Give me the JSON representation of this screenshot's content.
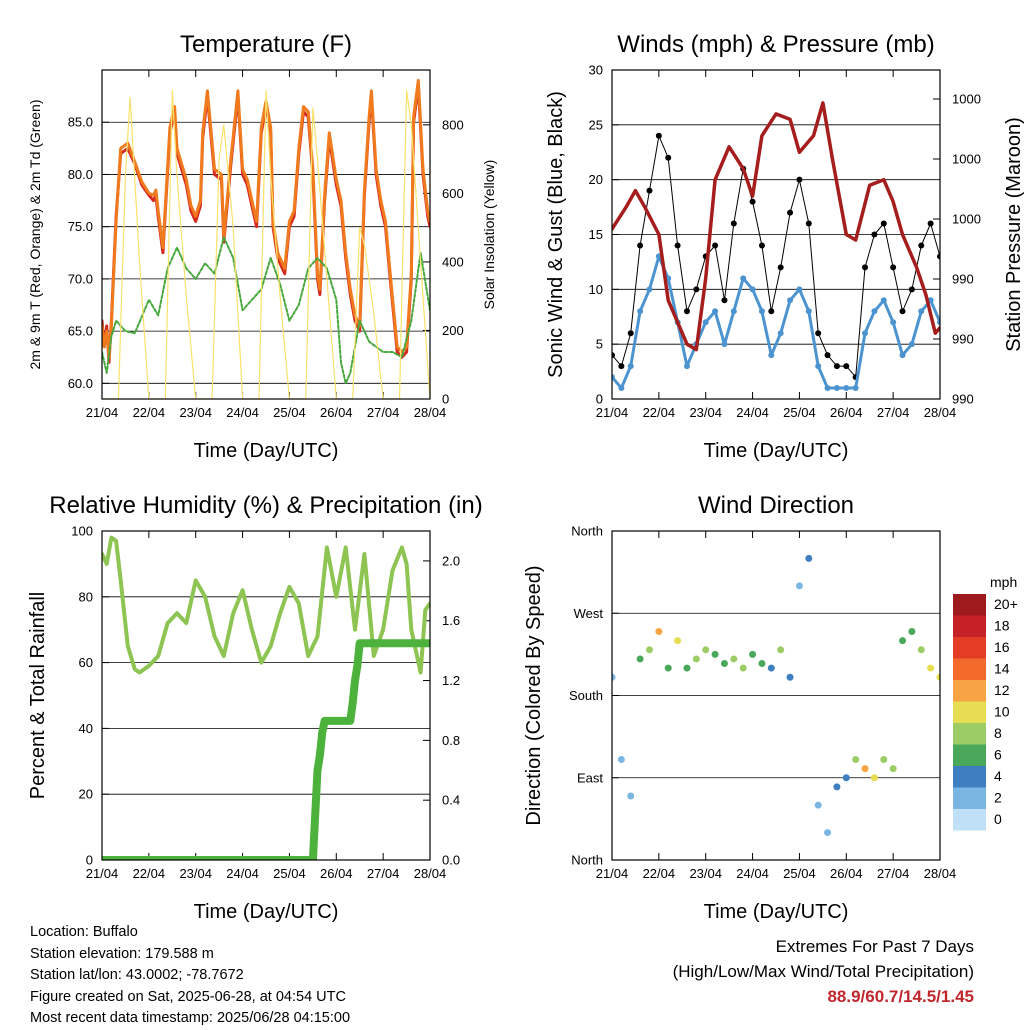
{
  "colors": {
    "t2m": "#d42a20",
    "t9m": "#f07b1e",
    "td": "#48a83e",
    "solar": "#f8e26a",
    "gust": "#000000",
    "wind": "#4c94d0",
    "pressure": "#a51d1d",
    "rh": "#8dc452",
    "precip": "#4cb23c",
    "extremes": "#c0272d"
  },
  "chart_data": [
    {
      "type": "line",
      "title": "Temperature (F)",
      "xlabel": "Time (Day/UTC)",
      "ylabel": "2m & 9m T (Red, Orange) & 2m Td (Green)",
      "y2label": "Solar Insolation (Yellow)",
      "x_ticks": [
        "21/04",
        "22/04",
        "23/04",
        "24/04",
        "25/04",
        "26/04",
        "27/04",
        "28/04"
      ],
      "y_ticks": [
        "60.0",
        "65.0",
        "70.0",
        "75.0",
        "80.0",
        "85.0"
      ],
      "ylim": [
        58.5,
        90
      ],
      "y2_ticks": [
        "0",
        "200",
        "400",
        "600",
        "800"
      ],
      "y2lim": [
        0,
        960
      ],
      "grid": true,
      "series": [
        {
          "key": "t2m",
          "x": [
            0,
            0.05,
            0.1,
            0.15,
            0.2,
            0.3,
            0.4,
            0.55,
            0.7,
            0.85,
            1.0,
            1.1,
            1.15,
            1.2,
            1.3,
            1.45,
            1.55,
            1.6,
            1.8,
            1.9,
            2.0,
            2.1,
            2.15,
            2.25,
            2.4,
            2.55,
            2.6,
            2.75,
            2.9,
            3.0,
            3.1,
            3.2,
            3.3,
            3.4,
            3.5,
            3.6,
            3.65,
            3.75,
            3.9,
            4.0,
            4.1,
            4.2,
            4.3,
            4.4,
            4.5,
            4.6,
            4.65,
            4.75,
            4.85,
            5.0,
            5.1,
            5.2,
            5.3,
            5.4,
            5.5,
            5.6,
            5.7,
            5.75,
            5.85,
            5.95,
            6.05,
            6.15,
            6.3,
            6.4,
            6.5,
            6.6,
            6.65,
            6.75,
            6.85,
            6.95,
            7.0
          ],
          "y": [
            66,
            63.5,
            65.5,
            62,
            66,
            76,
            82,
            82.5,
            81,
            79,
            78,
            77.5,
            78,
            76,
            72.5,
            84,
            86,
            82,
            79,
            76.5,
            75.5,
            77,
            83.5,
            87.5,
            80,
            79.5,
            73.5,
            81,
            87.5,
            80,
            79,
            77,
            75,
            84,
            86.5,
            84,
            75,
            72,
            70.5,
            75,
            76,
            82,
            86,
            85.5,
            80,
            70,
            68.5,
            77.5,
            83.5,
            79,
            77,
            72,
            68.5,
            66,
            65,
            78,
            85,
            87.5,
            80,
            77,
            75,
            70,
            63,
            62.5,
            63,
            70,
            85,
            88.5,
            80,
            76,
            75
          ]
        },
        {
          "key": "t9m",
          "x": [
            0,
            0.05,
            0.1,
            0.15,
            0.2,
            0.3,
            0.4,
            0.55,
            0.7,
            0.85,
            1.0,
            1.1,
            1.15,
            1.2,
            1.3,
            1.45,
            1.55,
            1.6,
            1.8,
            1.9,
            2.0,
            2.1,
            2.15,
            2.25,
            2.4,
            2.55,
            2.6,
            2.75,
            2.9,
            3.0,
            3.1,
            3.2,
            3.3,
            3.4,
            3.5,
            3.6,
            3.65,
            3.75,
            3.9,
            4.0,
            4.1,
            4.2,
            4.3,
            4.4,
            4.5,
            4.6,
            4.65,
            4.75,
            4.85,
            5.0,
            5.1,
            5.2,
            5.3,
            5.4,
            5.5,
            5.6,
            5.7,
            5.75,
            5.85,
            5.95,
            6.05,
            6.15,
            6.3,
            6.4,
            6.5,
            6.6,
            6.65,
            6.75,
            6.85,
            6.95,
            7.0
          ],
          "y": [
            65.5,
            63.5,
            65,
            62.5,
            65.5,
            75.5,
            82.5,
            83,
            81.2,
            79.3,
            78.2,
            78,
            78.5,
            76.5,
            73,
            84.5,
            86.5,
            82.5,
            79.5,
            77,
            76,
            77.5,
            84,
            88,
            80.5,
            80,
            74,
            81.5,
            88,
            80.5,
            79.5,
            77.5,
            75.5,
            84.5,
            87,
            84.5,
            75.5,
            72.5,
            71,
            75.5,
            76.5,
            82.5,
            86.5,
            86,
            80.5,
            70.5,
            69,
            78,
            84,
            79.5,
            77.5,
            72.5,
            69,
            66.5,
            65.5,
            78.5,
            85.5,
            88,
            80.5,
            77.5,
            75.5,
            70.5,
            63.5,
            63,
            63.5,
            70.5,
            85.5,
            89,
            80.5,
            76.5,
            75.5
          ]
        },
        {
          "key": "td",
          "x": [
            0,
            0.1,
            0.2,
            0.3,
            0.5,
            0.7,
            1.0,
            1.2,
            1.4,
            1.6,
            1.8,
            2.0,
            2.2,
            2.4,
            2.6,
            2.8,
            3.0,
            3.2,
            3.4,
            3.6,
            3.8,
            4.0,
            4.2,
            4.4,
            4.6,
            4.8,
            5.0,
            5.1,
            5.2,
            5.3,
            5.5,
            5.7,
            6.0,
            6.2,
            6.4,
            6.6,
            6.8,
            7.0
          ],
          "y": [
            63,
            61,
            64.5,
            66,
            65,
            64.8,
            68,
            66.5,
            71,
            73,
            71,
            70,
            71.5,
            70.5,
            74,
            72,
            67,
            68,
            69,
            72,
            69.5,
            66,
            67.5,
            71,
            72,
            71,
            68,
            62,
            60,
            61,
            66,
            64,
            63,
            63,
            62.5,
            66,
            72.5,
            67
          ]
        },
        {
          "key": "solar",
          "axis": "y2",
          "x": [
            0,
            0.35,
            0.5,
            0.6,
            0.8,
            1.0,
            1.35,
            1.5,
            1.6,
            1.8,
            2.0,
            2.35,
            2.5,
            2.6,
            2.8,
            3.0,
            3.35,
            3.5,
            3.6,
            3.8,
            4.0,
            4.35,
            4.5,
            4.6,
            4.8,
            5.0,
            5.35,
            5.5,
            5.6,
            5.8,
            6.0,
            6.35,
            6.5,
            6.6,
            6.8,
            7.0
          ],
          "y": [
            0,
            0,
            650,
            880,
            400,
            0,
            0,
            900,
            650,
            300,
            0,
            0,
            700,
            800,
            500,
            0,
            0,
            900,
            650,
            300,
            0,
            0,
            850,
            700,
            350,
            0,
            0,
            500,
            450,
            250,
            0,
            0,
            900,
            800,
            400,
            0
          ]
        }
      ]
    },
    {
      "type": "scatter",
      "title": "Winds (mph) & Pressure (mb)",
      "xlabel": "Time (Day/UTC)",
      "ylabel": "Sonic Wind & Gust (Blue, Black)",
      "y2label": "Station Pressure (Maroon)",
      "x_ticks": [
        "21/04",
        "22/04",
        "23/04",
        "24/04",
        "25/04",
        "26/04",
        "27/04",
        "28/04"
      ],
      "y_ticks": [
        "0",
        "5",
        "10",
        "15",
        "20",
        "25",
        "30"
      ],
      "ylim": [
        0,
        30
      ],
      "y2_ticks": [
        "990",
        "990",
        "990",
        "1000",
        "1000",
        "1000"
      ],
      "grid": true,
      "series": [
        {
          "key": "gust",
          "x": [
            0,
            0.2,
            0.4,
            0.6,
            0.8,
            1.0,
            1.2,
            1.4,
            1.6,
            1.8,
            2.0,
            2.2,
            2.4,
            2.6,
            2.8,
            3.0,
            3.2,
            3.4,
            3.6,
            3.8,
            4.0,
            4.2,
            4.4,
            4.6,
            4.8,
            5.0,
            5.2,
            5.4,
            5.6,
            5.8,
            6.0,
            6.2,
            6.4,
            6.6,
            6.8,
            7.0
          ],
          "y": [
            4,
            3,
            6,
            14,
            19,
            24,
            22,
            14,
            8,
            10,
            13,
            14,
            9,
            16,
            21,
            18,
            14,
            8,
            12,
            17,
            20,
            16,
            6,
            4,
            3,
            3,
            2,
            12,
            15,
            16,
            12,
            8,
            10,
            14,
            16,
            13
          ]
        },
        {
          "key": "wind",
          "x": [
            0,
            0.2,
            0.4,
            0.6,
            0.8,
            1.0,
            1.2,
            1.4,
            1.6,
            1.8,
            2.0,
            2.2,
            2.4,
            2.6,
            2.8,
            3.0,
            3.2,
            3.4,
            3.6,
            3.8,
            4.0,
            4.2,
            4.4,
            4.6,
            4.8,
            5.0,
            5.2,
            5.4,
            5.6,
            5.8,
            6.0,
            6.2,
            6.4,
            6.6,
            6.8,
            7.0
          ],
          "y": [
            2,
            1,
            3,
            8,
            10,
            13,
            11,
            7,
            3,
            5,
            7,
            8,
            5,
            8,
            11,
            10,
            8,
            4,
            6,
            9,
            10,
            8,
            3,
            1,
            1,
            1,
            1,
            6,
            8,
            9,
            7,
            4,
            5,
            8,
            9,
            7
          ]
        },
        {
          "key": "pressure",
          "x": [
            0,
            0.3,
            0.5,
            0.7,
            1.0,
            1.2,
            1.6,
            1.8,
            2.0,
            2.2,
            2.5,
            2.8,
            3.0,
            3.2,
            3.5,
            3.8,
            4.0,
            4.3,
            4.5,
            4.7,
            5.0,
            5.2,
            5.5,
            5.8,
            6.0,
            6.2,
            6.5,
            6.7,
            6.9,
            7.0
          ],
          "y": [
            15.5,
            17.5,
            19,
            17.5,
            15,
            9,
            5,
            4.5,
            11,
            20,
            23,
            21,
            18.5,
            24,
            26,
            25.5,
            22.5,
            24,
            27,
            22,
            15,
            14.5,
            19.5,
            20,
            18,
            15,
            12,
            9.5,
            6,
            6.5
          ]
        }
      ]
    },
    {
      "type": "line",
      "title": "Relative Humidity (%) & Precipitation (in)",
      "xlabel": "Time (Day/UTC)",
      "ylabel": "Percent & Total Rainfall",
      "x_ticks": [
        "21/04",
        "22/04",
        "23/04",
        "24/04",
        "25/04",
        "26/04",
        "27/04",
        "28/04"
      ],
      "y_ticks": [
        "0",
        "20",
        "40",
        "60",
        "80",
        "100"
      ],
      "ylim": [
        0,
        100
      ],
      "y2_ticks": [
        "0.0",
        "0.4",
        "0.8",
        "1.2",
        "1.6",
        "2.0"
      ],
      "y2lim": [
        0,
        2.2
      ],
      "grid": true,
      "series": [
        {
          "key": "rh",
          "x": [
            0,
            0.1,
            0.2,
            0.3,
            0.4,
            0.55,
            0.7,
            0.8,
            1.0,
            1.2,
            1.4,
            1.6,
            1.8,
            2.0,
            2.2,
            2.4,
            2.6,
            2.8,
            3.0,
            3.2,
            3.4,
            3.6,
            3.8,
            4.0,
            4.2,
            4.4,
            4.6,
            4.8,
            5.0,
            5.2,
            5.4,
            5.6,
            5.8,
            6.0,
            6.2,
            6.4,
            6.5,
            6.6,
            6.8,
            6.9,
            7.0
          ],
          "y": [
            93,
            90,
            98,
            97,
            85,
            65,
            58,
            57,
            59,
            62,
            72,
            75,
            72,
            85,
            80,
            68,
            62,
            75,
            82,
            70,
            60,
            65,
            75,
            83,
            78,
            62,
            68,
            95,
            80,
            95,
            70,
            93,
            62,
            70,
            88,
            95,
            90,
            70,
            57,
            76,
            78
          ]
        },
        {
          "key": "precip",
          "axis": "y2",
          "x": [
            0,
            1,
            2,
            3,
            4,
            4.5,
            4.55,
            4.6,
            4.65,
            4.7,
            4.75,
            5.0,
            5.3,
            5.35,
            5.4,
            5.45,
            5.5,
            6,
            7
          ],
          "y": [
            0,
            0,
            0,
            0,
            0,
            0,
            0.3,
            0.6,
            0.7,
            0.85,
            0.93,
            0.93,
            0.93,
            1.05,
            1.2,
            1.3,
            1.45,
            1.45,
            1.45
          ]
        }
      ]
    },
    {
      "type": "scatter",
      "title": "Wind Direction",
      "xlabel": "Time (Day/UTC)",
      "ylabel": "Direction (Colored By Speed)",
      "x_ticks": [
        "21/04",
        "22/04",
        "23/04",
        "24/04",
        "25/04",
        "26/04",
        "27/04",
        "28/04"
      ],
      "y_ticks": [
        "North",
        "East",
        "South",
        "West",
        "North"
      ],
      "grid": true,
      "legend": {
        "title": "mph",
        "labels": [
          "20+",
          "18",
          "16",
          "14",
          "12",
          "10",
          "8",
          "6",
          "4",
          "2",
          "0"
        ],
        "colors": [
          "#9e1a1c",
          "#c72128",
          "#e33d26",
          "#f26b2b",
          "#f8a445",
          "#e7dd52",
          "#9ccc65",
          "#4aa85a",
          "#3d7fc0",
          "#7bb6e3",
          "#bfe0f6"
        ]
      },
      "series": [
        {
          "key": "direction",
          "x": [
            0,
            0.2,
            0.4,
            0.6,
            0.8,
            1.0,
            1.2,
            1.4,
            1.6,
            1.8,
            2.0,
            2.2,
            2.4,
            2.6,
            2.8,
            3.0,
            3.2,
            3.4,
            3.6,
            3.8,
            4.0,
            4.2,
            4.4,
            4.6,
            4.8,
            5.0,
            5.2,
            5.4,
            5.6,
            5.8,
            6.0,
            6.2,
            6.4,
            6.6,
            6.8,
            7.0
          ],
          "y": [
            200,
            110,
            70,
            220,
            230,
            250,
            210,
            240,
            210,
            220,
            230,
            225,
            215,
            220,
            210,
            225,
            215,
            210,
            230,
            200,
            300,
            330,
            60,
            30,
            80,
            90,
            110,
            100,
            90,
            110,
            100,
            240,
            250,
            230,
            210,
            200
          ],
          "speed": [
            2,
            1,
            2,
            5,
            8,
            12,
            6,
            9,
            5,
            8,
            7,
            6,
            5,
            7,
            8,
            6,
            5,
            4,
            7,
            3,
            2,
            3,
            1,
            2,
            4,
            3,
            8,
            12,
            10,
            8,
            7,
            5,
            6,
            8,
            10,
            9
          ]
        }
      ]
    }
  ],
  "info": {
    "location": "Location: Buffalo",
    "elevation": "Station elevation: 179.588 m",
    "latlon": "Station lat/lon: 43.0002; -78.7672",
    "created": "Figure created on Sat, 2025-06-28, at 04:54 UTC",
    "recent": "Most recent data timestamp: 2025/06/28 04:15:00"
  },
  "extremes": {
    "line1": "Extremes For Past 7 Days",
    "line2": "(High/Low/Max Wind/Total Precipitation)",
    "values": "88.9/60.7/14.5/1.45"
  }
}
